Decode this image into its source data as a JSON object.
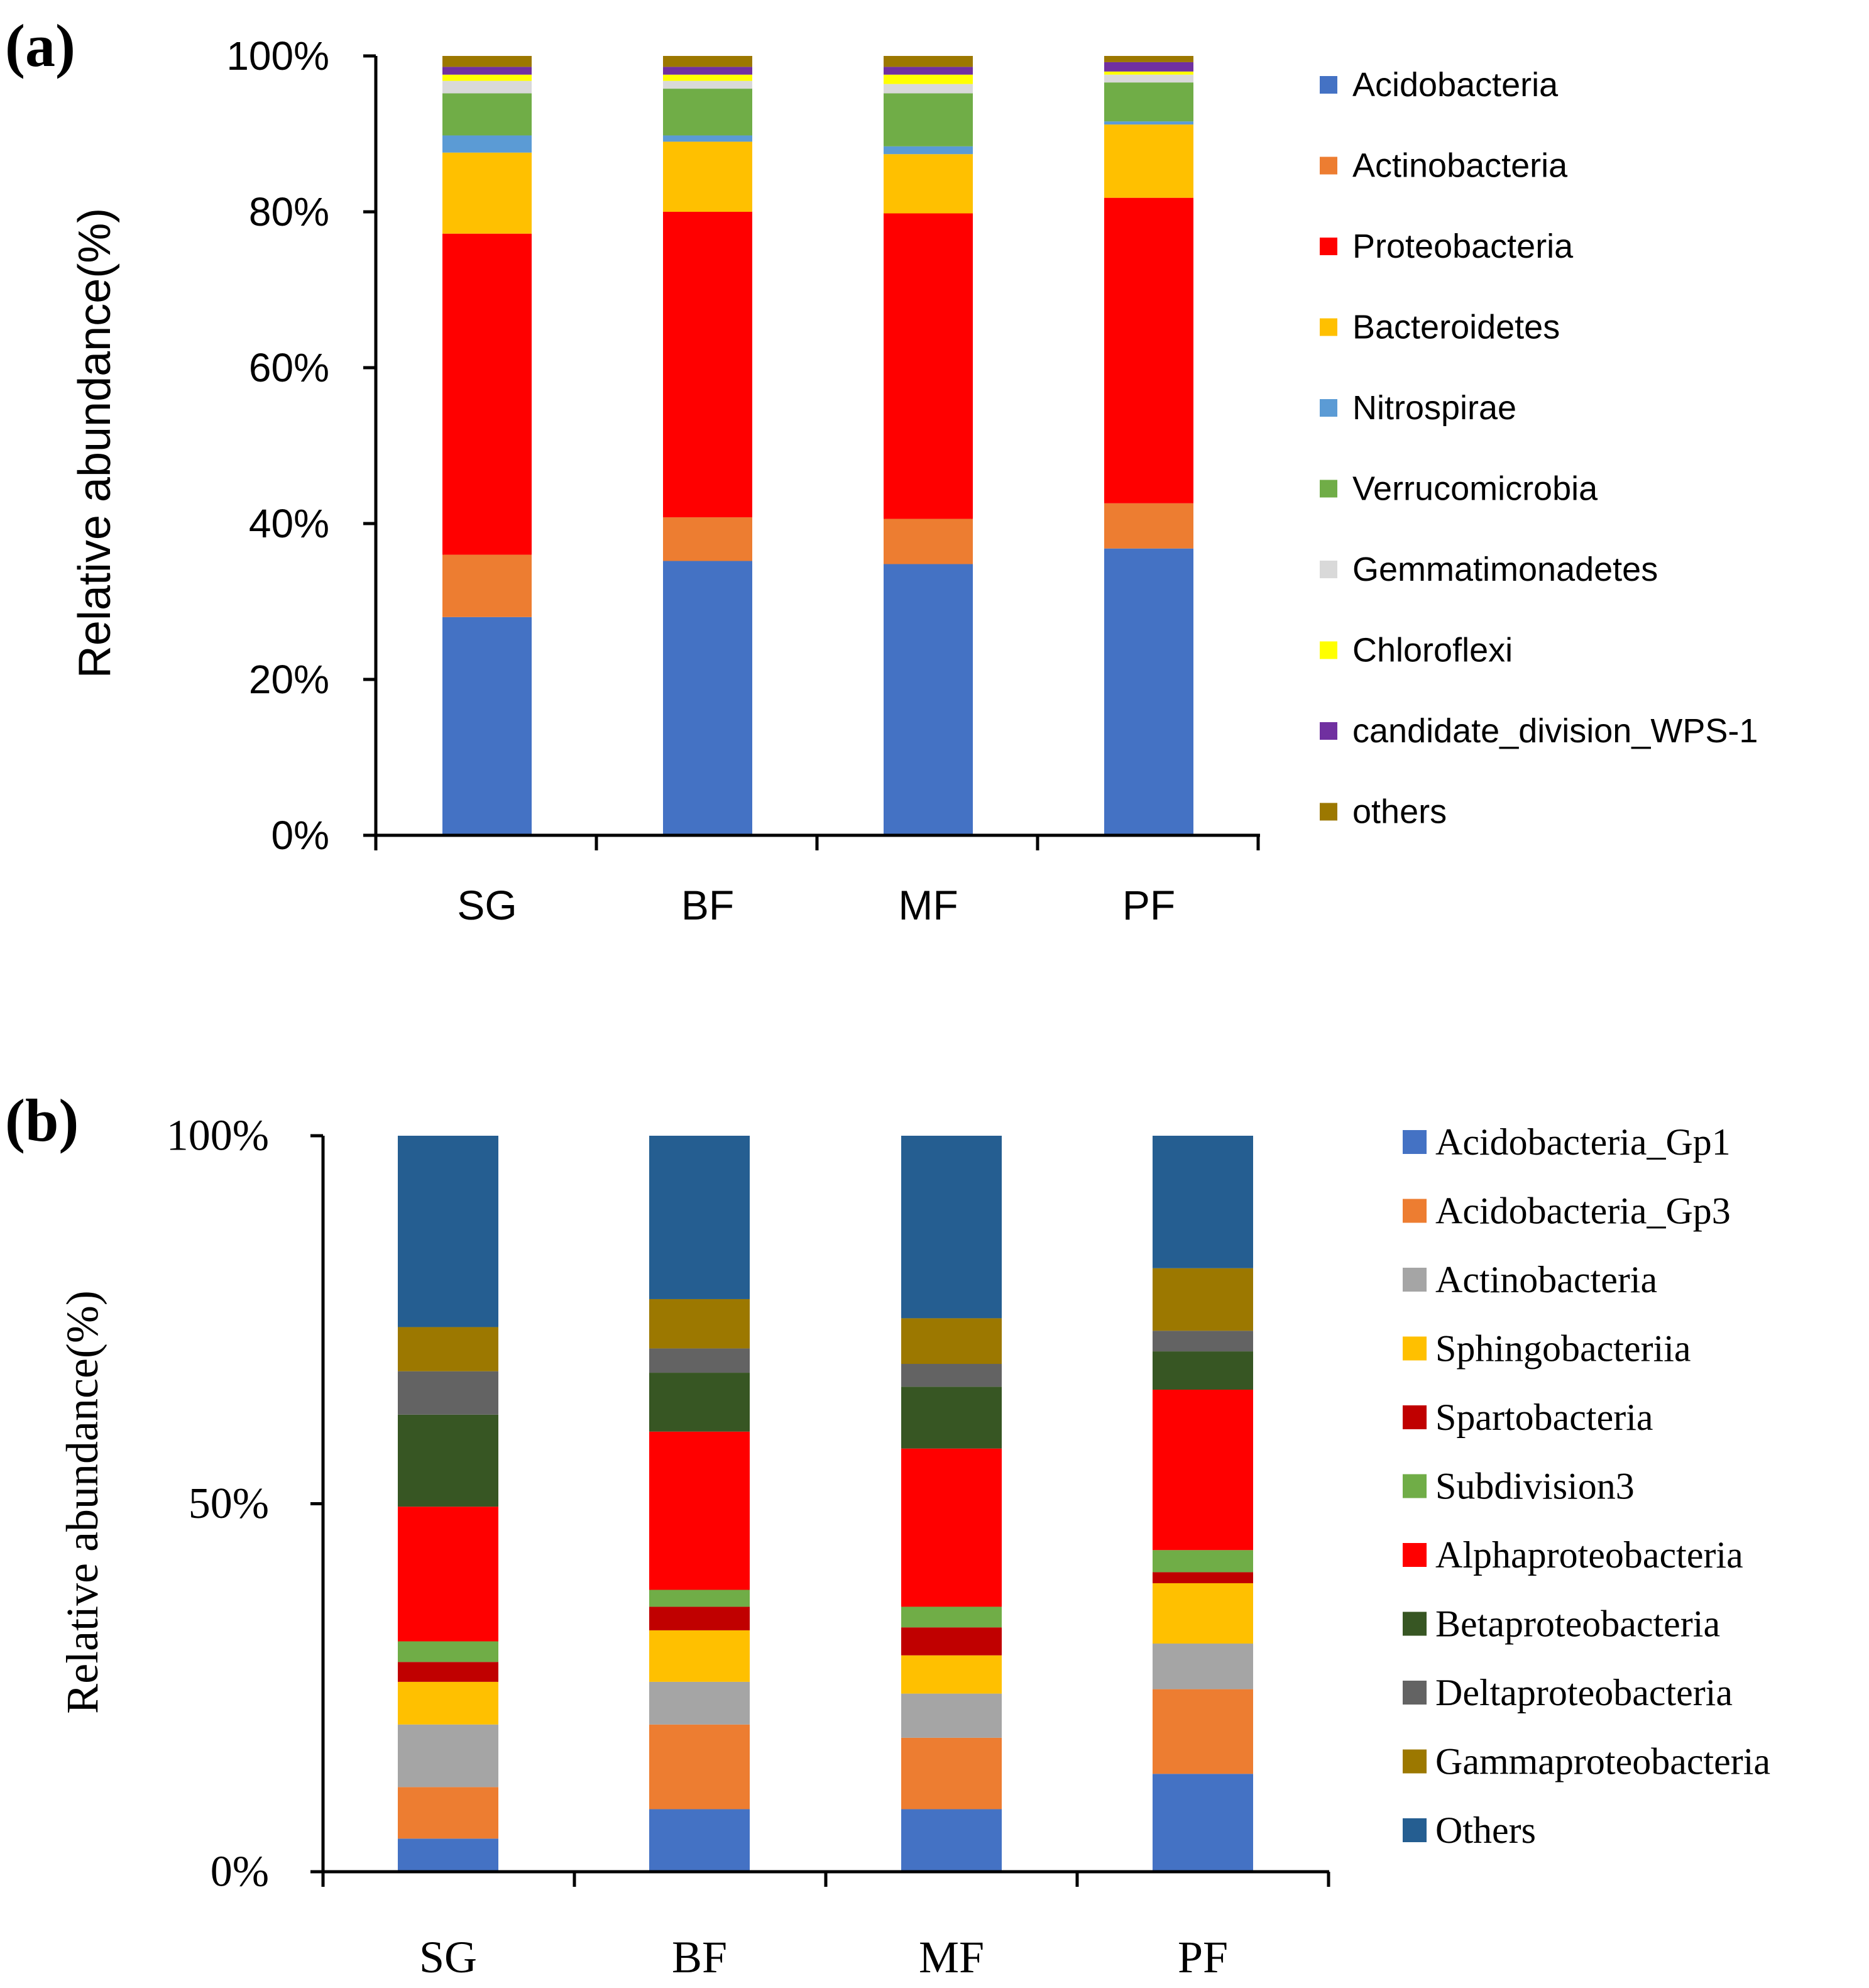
{
  "chart_data": [
    {
      "type": "bar",
      "stacked": true,
      "panel_label": "(a)",
      "ylabel": "Relative abundance(%)",
      "xlabel": "",
      "ylim": [
        0,
        100
      ],
      "y_ticks": [
        "0%",
        "20%",
        "40%",
        "60%",
        "80%",
        "100%"
      ],
      "y_tick_values": [
        0,
        20,
        40,
        60,
        80,
        100
      ],
      "categories": [
        "SG",
        "BF",
        "MF",
        "PF"
      ],
      "legend_position": "right",
      "series": [
        {
          "name": "Acidobacteria",
          "color": "#4472C4",
          "values": [
            28.0,
            35.2,
            34.8,
            36.8
          ]
        },
        {
          "name": "Actinobacteria",
          "color": "#ED7D31",
          "values": [
            8.0,
            5.6,
            5.8,
            5.8
          ]
        },
        {
          "name": "Proteobacteria",
          "color": "#FF0000",
          "values": [
            41.2,
            39.2,
            39.2,
            39.2
          ]
        },
        {
          "name": "Bacteroidetes",
          "color": "#FFC000",
          "values": [
            10.4,
            9.0,
            7.6,
            9.4
          ]
        },
        {
          "name": "Nitrospirae",
          "color": "#5B9BD5",
          "values": [
            2.2,
            0.8,
            1.0,
            0.4
          ]
        },
        {
          "name": "Verrucomicrobia",
          "color": "#70AD47",
          "values": [
            5.4,
            6.0,
            6.8,
            5.0
          ]
        },
        {
          "name": "Gemmatimonadetes",
          "color": "#D9D9D9",
          "values": [
            1.6,
            1.0,
            1.2,
            1.0
          ]
        },
        {
          "name": "Chloroflexi",
          "color": "#FFFF00",
          "values": [
            0.8,
            0.8,
            1.2,
            0.4
          ]
        },
        {
          "name": "candidate_division_WPS-1",
          "color": "#7030A0",
          "values": [
            1.0,
            1.0,
            1.0,
            1.2
          ]
        },
        {
          "name": "others",
          "color": "#9C7800",
          "values": [
            1.4,
            1.4,
            1.4,
            0.8
          ]
        }
      ]
    },
    {
      "type": "bar",
      "stacked": true,
      "panel_label": "(b)",
      "ylabel": "Relative abundance(%)",
      "xlabel": "",
      "ylim": [
        0,
        100
      ],
      "y_ticks": [
        "0%",
        "50%",
        "100%"
      ],
      "y_tick_values": [
        0,
        50,
        100
      ],
      "categories": [
        "SG",
        "BF",
        "MF",
        "PF"
      ],
      "legend_position": "right",
      "series": [
        {
          "name": "Acidobacteria_Gp1",
          "color": "#4472C4",
          "values": [
            4.5,
            8.5,
            8.5,
            13.3
          ]
        },
        {
          "name": "Acidobacteria_Gp3",
          "color": "#ED7D31",
          "values": [
            7.0,
            11.5,
            9.7,
            11.5
          ]
        },
        {
          "name": "Actinobacteria",
          "color": "#A5A5A5",
          "values": [
            8.5,
            5.8,
            6.0,
            6.2
          ]
        },
        {
          "name": "Sphingobacteriia",
          "color": "#FFC000",
          "values": [
            5.8,
            7.0,
            5.2,
            8.2
          ]
        },
        {
          "name": "Spartobacteria",
          "color": "#C00000",
          "values": [
            2.7,
            3.2,
            3.8,
            1.5
          ]
        },
        {
          "name": "Subdivision3",
          "color": "#70AD47",
          "values": [
            2.8,
            2.3,
            2.8,
            3.0
          ]
        },
        {
          "name": "Alphaproteobacteria",
          "color": "#FF0000",
          "values": [
            18.3,
            21.5,
            21.5,
            21.8
          ]
        },
        {
          "name": "Betaproteobacteria",
          "color": "#375623",
          "values": [
            12.5,
            8.0,
            8.4,
            5.2
          ]
        },
        {
          "name": "Deltaproteobacteria",
          "color": "#636363",
          "values": [
            5.9,
            3.3,
            3.1,
            2.8
          ]
        },
        {
          "name": "Gammaproteobacteria",
          "color": "#9C7800",
          "values": [
            6.0,
            6.7,
            6.2,
            8.5
          ]
        },
        {
          "name": "Others",
          "color": "#255E91",
          "values": [
            26.0,
            22.2,
            24.8,
            18.0
          ]
        }
      ]
    }
  ]
}
